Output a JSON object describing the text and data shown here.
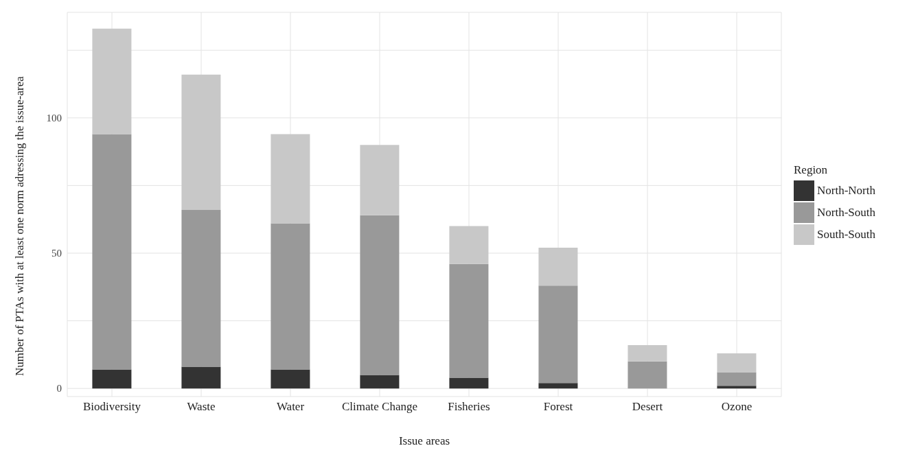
{
  "chart_data": {
    "type": "bar",
    "stacked": true,
    "xlabel": "Issue areas",
    "ylabel": "Number of PTAs with at least one norm adressing the issue-area",
    "legend_title": "Region",
    "legend": "right",
    "categories": [
      "Biodiversity",
      "Waste",
      "Water",
      "Climate Change",
      "Fisheries",
      "Forest",
      "Desert",
      "Ozone"
    ],
    "series": [
      {
        "name": "North-North",
        "color": "#333333",
        "values": [
          7,
          8,
          7,
          5,
          4,
          2,
          0,
          1
        ]
      },
      {
        "name": "North-South",
        "color": "#999999",
        "values": [
          87,
          58,
          54,
          59,
          42,
          36,
          10,
          5
        ]
      },
      {
        "name": "South-South",
        "color": "#c8c8c8",
        "values": [
          39,
          50,
          33,
          26,
          14,
          14,
          6,
          7
        ]
      }
    ],
    "ylim": [
      -3,
      139
    ],
    "yticks": [
      0,
      {
        "value": 25,
        "label": null
      },
      50,
      {
        "value": 75,
        "label": null
      },
      100,
      {
        "value": 125,
        "label": null
      }
    ],
    "grid": true
  }
}
